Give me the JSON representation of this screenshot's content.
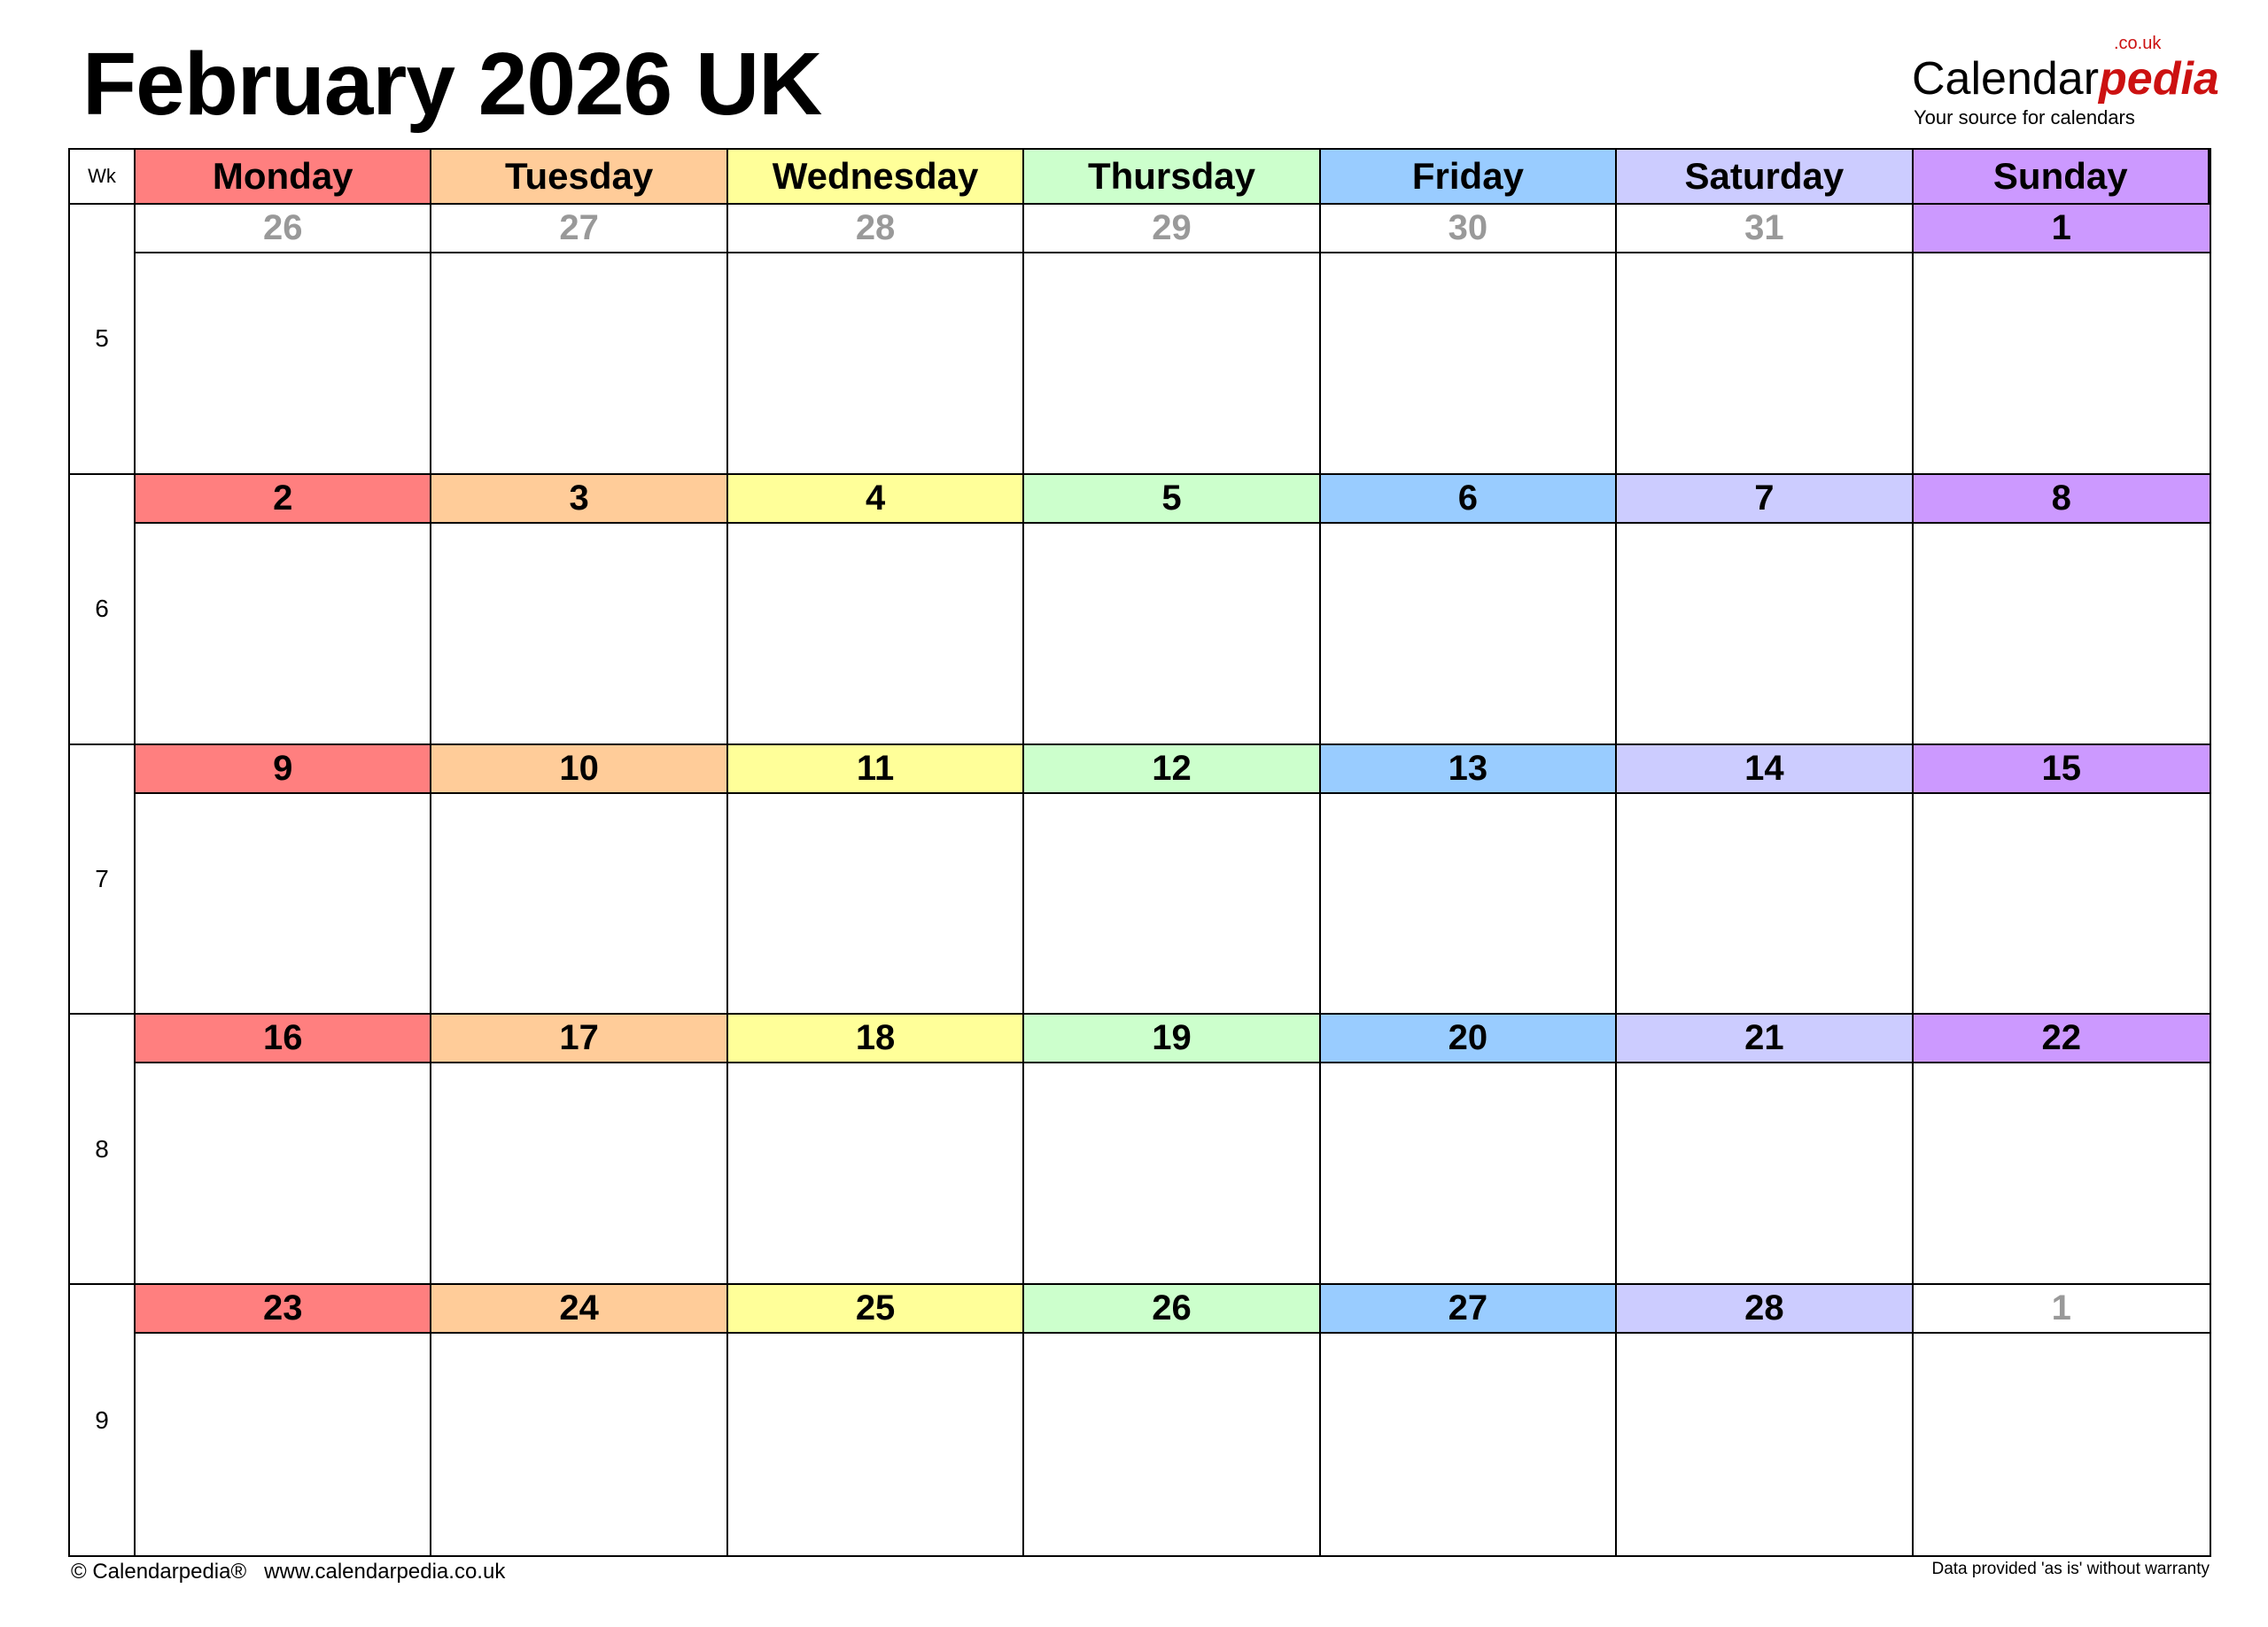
{
  "title": "February 2026 UK",
  "logo": {
    "main": "Calendar",
    "accent": "pedia",
    "tld": ".co.uk",
    "tagline": "Your source for calendars"
  },
  "header": {
    "wk_label": "Wk",
    "days": [
      "Monday",
      "Tuesday",
      "Wednesday",
      "Thursday",
      "Friday",
      "Saturday",
      "Sunday"
    ]
  },
  "colors": {
    "monday": "#FF7F7F",
    "tuesday": "#FFCC99",
    "wednesday": "#FFFF99",
    "thursday": "#CCFFCC",
    "friday": "#99CCFF",
    "saturday": "#CCCCFF",
    "sunday": "#CC99FF",
    "other_month_text": "#999999"
  },
  "weeks": [
    {
      "wk": "5",
      "dates": [
        {
          "d": "26",
          "other": true
        },
        {
          "d": "27",
          "other": true
        },
        {
          "d": "28",
          "other": true
        },
        {
          "d": "29",
          "other": true
        },
        {
          "d": "30",
          "other": true
        },
        {
          "d": "31",
          "other": true
        },
        {
          "d": "1",
          "other": false
        }
      ]
    },
    {
      "wk": "6",
      "dates": [
        {
          "d": "2",
          "other": false
        },
        {
          "d": "3",
          "other": false
        },
        {
          "d": "4",
          "other": false
        },
        {
          "d": "5",
          "other": false
        },
        {
          "d": "6",
          "other": false
        },
        {
          "d": "7",
          "other": false
        },
        {
          "d": "8",
          "other": false
        }
      ]
    },
    {
      "wk": "7",
      "dates": [
        {
          "d": "9",
          "other": false
        },
        {
          "d": "10",
          "other": false
        },
        {
          "d": "11",
          "other": false
        },
        {
          "d": "12",
          "other": false
        },
        {
          "d": "13",
          "other": false
        },
        {
          "d": "14",
          "other": false
        },
        {
          "d": "15",
          "other": false
        }
      ]
    },
    {
      "wk": "8",
      "dates": [
        {
          "d": "16",
          "other": false
        },
        {
          "d": "17",
          "other": false
        },
        {
          "d": "18",
          "other": false
        },
        {
          "d": "19",
          "other": false
        },
        {
          "d": "20",
          "other": false
        },
        {
          "d": "21",
          "other": false
        },
        {
          "d": "22",
          "other": false
        }
      ]
    },
    {
      "wk": "9",
      "dates": [
        {
          "d": "23",
          "other": false
        },
        {
          "d": "24",
          "other": false
        },
        {
          "d": "25",
          "other": false
        },
        {
          "d": "26",
          "other": false
        },
        {
          "d": "27",
          "other": false
        },
        {
          "d": "28",
          "other": false
        },
        {
          "d": "1",
          "other": true
        }
      ]
    }
  ],
  "footer": {
    "left": "© Calendarpedia®   www.calendarpedia.co.uk",
    "right": "Data provided 'as is' without warranty"
  }
}
